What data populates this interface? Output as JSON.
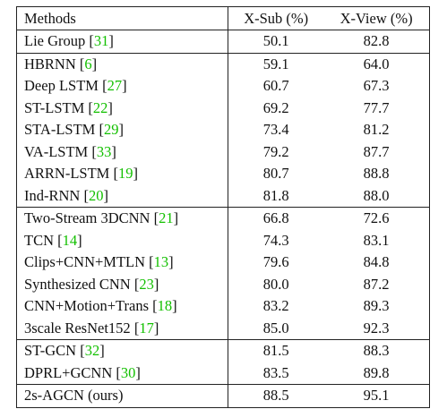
{
  "table": {
    "headers": {
      "method": "Methods",
      "xsub": "X-Sub (%)",
      "xview": "X-View (%)"
    },
    "groups": [
      {
        "rows": [
          {
            "method": "Lie Group ",
            "ref": "31",
            "xsub": "50.1",
            "xview": "82.8"
          }
        ]
      },
      {
        "rows": [
          {
            "method": "HBRNN ",
            "ref": "6",
            "xsub": "59.1",
            "xview": "64.0"
          },
          {
            "method": "Deep LSTM ",
            "ref": "27",
            "xsub": "60.7",
            "xview": "67.3"
          },
          {
            "method": "ST-LSTM ",
            "ref": "22",
            "xsub": "69.2",
            "xview": "77.7"
          },
          {
            "method": "STA-LSTM ",
            "ref": "29",
            "xsub": "73.4",
            "xview": "81.2"
          },
          {
            "method": "VA-LSTM ",
            "ref": "33",
            "xsub": "79.2",
            "xview": "87.7"
          },
          {
            "method": "ARRN-LSTM ",
            "ref": "19",
            "xsub": "80.7",
            "xview": "88.8"
          },
          {
            "method": "Ind-RNN ",
            "ref": "20",
            "xsub": "81.8",
            "xview": "88.0"
          }
        ]
      },
      {
        "rows": [
          {
            "method": "Two-Stream 3DCNN ",
            "ref": "21",
            "xsub": "66.8",
            "xview": "72.6"
          },
          {
            "method": "TCN ",
            "ref": "14",
            "xsub": "74.3",
            "xview": "83.1"
          },
          {
            "method": "Clips+CNN+MTLN ",
            "ref": "13",
            "xsub": "79.6",
            "xview": "84.8"
          },
          {
            "method": "Synthesized CNN ",
            "ref": "23",
            "xsub": "80.0",
            "xview": "87.2"
          },
          {
            "method": "CNN+Motion+Trans ",
            "ref": "18",
            "xsub": "83.2",
            "xview": "89.3"
          },
          {
            "method": "3scale ResNet152 ",
            "ref": "17",
            "xsub": "85.0",
            "xview": "92.3"
          }
        ]
      },
      {
        "rows": [
          {
            "method": "ST-GCN ",
            "ref": "32",
            "xsub": "81.5",
            "xview": "88.3"
          },
          {
            "method": "DPRL+GCNN ",
            "ref": "30",
            "xsub": "83.5",
            "xview": "89.8"
          }
        ]
      },
      {
        "rows": [
          {
            "method": "2s-AGCN (ours)",
            "ref": "",
            "xsub": "88.5",
            "xview": "95.1"
          }
        ]
      }
    ]
  }
}
